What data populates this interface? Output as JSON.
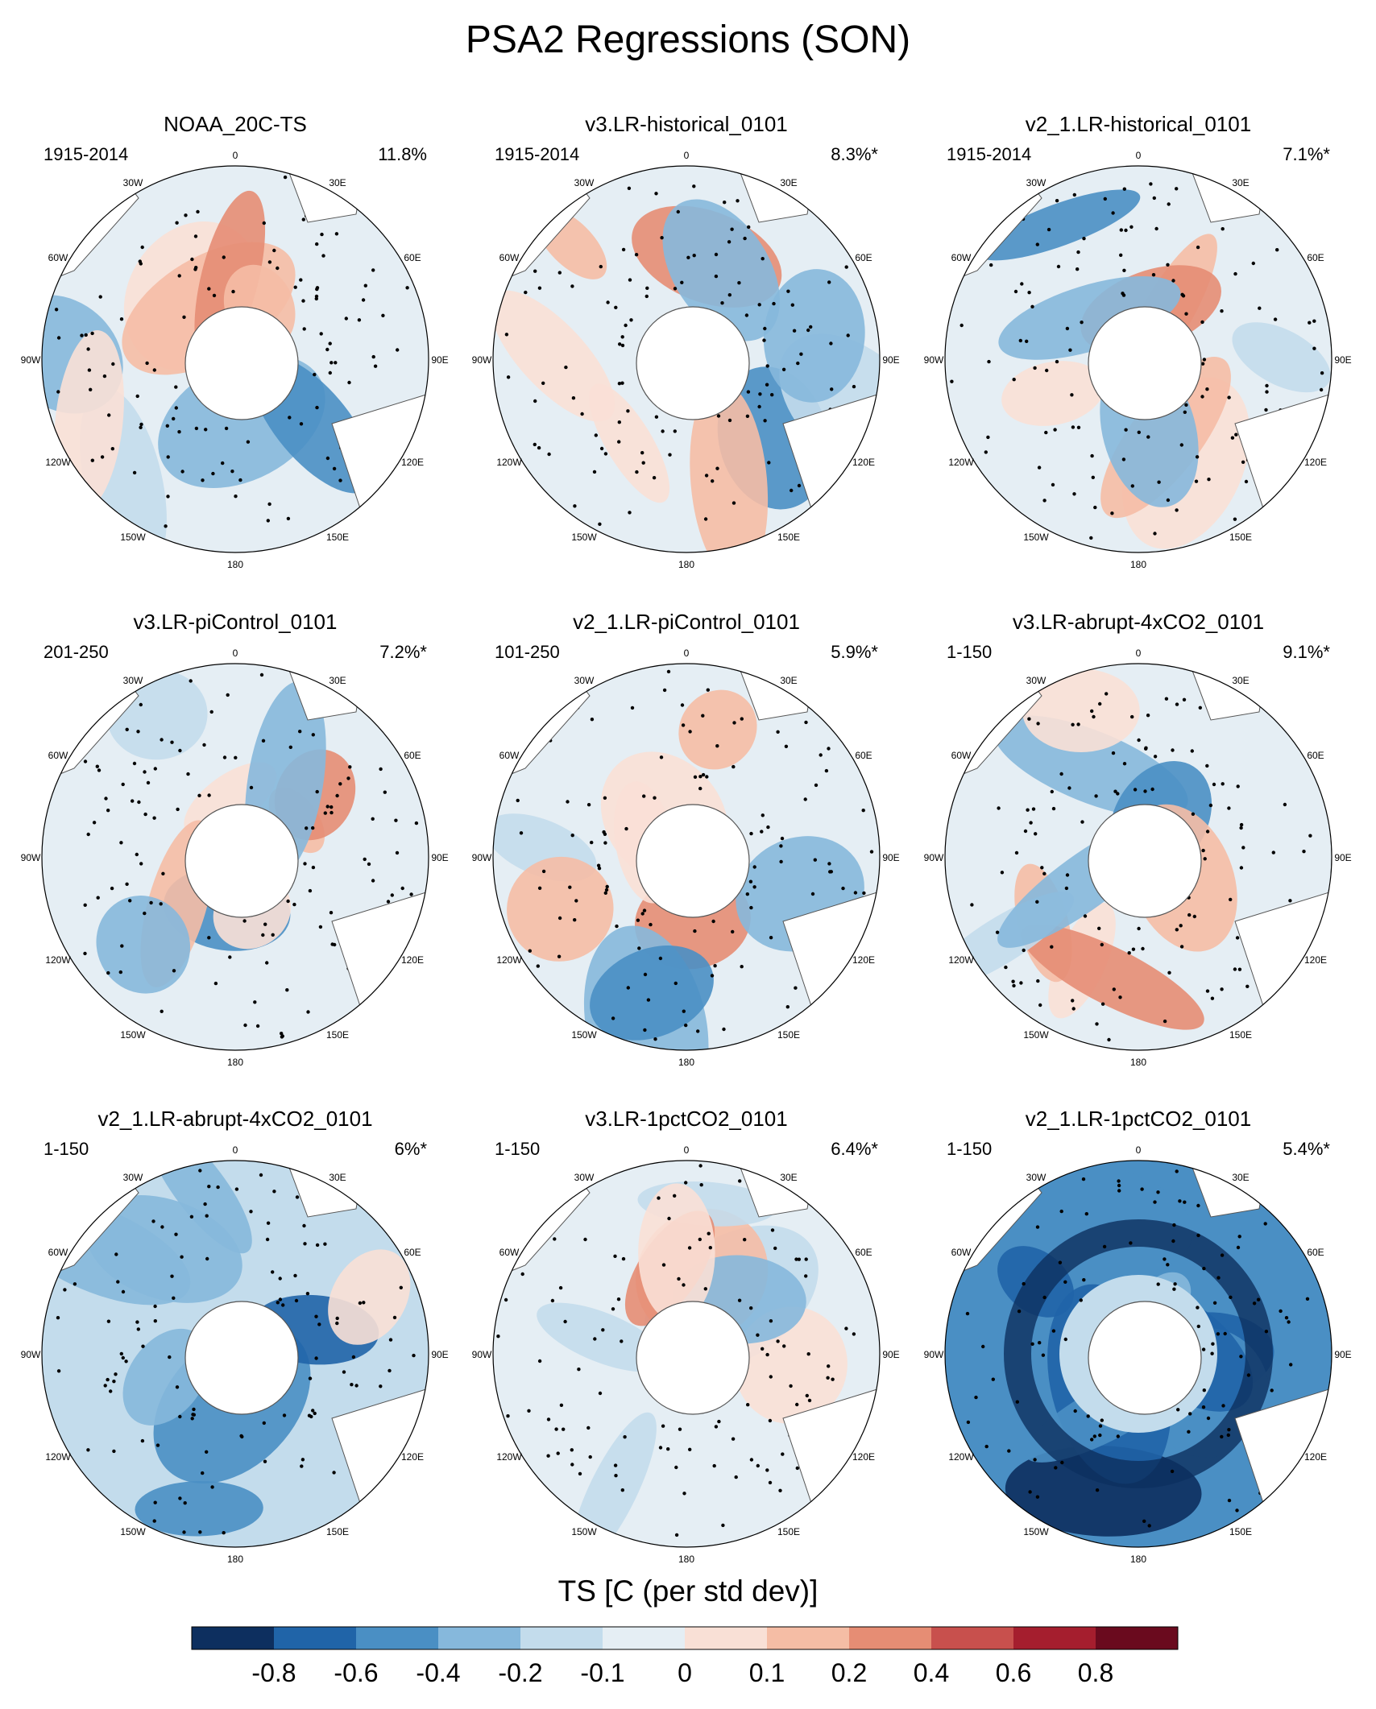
{
  "chart_data": {
    "type": "map-panels",
    "title": "PSA2 Regressions (SON)",
    "projection": "south-polar-stereographic",
    "lon_labels": [
      "0",
      "30E",
      "60E",
      "90E",
      "120E",
      "150E",
      "180",
      "150W",
      "120W",
      "90W",
      "60W",
      "30W"
    ],
    "panels": [
      {
        "name": "NOAA_20C-TS",
        "period": "1915-2014",
        "variance": "11.8%",
        "pattern": "mixed"
      },
      {
        "name": "v3.LR-historical_0101",
        "period": "1915-2014",
        "variance": "8.3%*",
        "pattern": "mixed"
      },
      {
        "name": "v2_1.LR-historical_0101",
        "period": "1915-2014",
        "variance": "7.1%*",
        "pattern": "mixed"
      },
      {
        "name": "v3.LR-piControl_0101",
        "period": "201-250",
        "variance": "7.2%*",
        "pattern": "mixed"
      },
      {
        "name": "v2_1.LR-piControl_0101",
        "period": "101-250",
        "variance": "5.9%*",
        "pattern": "mixed"
      },
      {
        "name": "v3.LR-abrupt-4xCO2_0101",
        "period": "1-150",
        "variance": "9.1%*",
        "pattern": "mixed"
      },
      {
        "name": "v2_1.LR-abrupt-4xCO2_0101",
        "period": "1-150",
        "variance": "6%*",
        "pattern": "cool"
      },
      {
        "name": "v3.LR-1pctCO2_0101",
        "period": "1-150",
        "variance": "6.4%*",
        "pattern": "light"
      },
      {
        "name": "v2_1.LR-1pctCO2_0101",
        "period": "1-150",
        "variance": "5.4%*",
        "pattern": "strong-cool"
      }
    ],
    "colorbar": {
      "title": "TS [C (per std dev)]",
      "labels": [
        "-0.8",
        "-0.6",
        "-0.4",
        "-0.2",
        "-0.1",
        "0",
        "0.1",
        "0.2",
        "0.4",
        "0.6",
        "0.8"
      ],
      "colors": [
        "#0d2f5f",
        "#2064a8",
        "#4a8fc4",
        "#86b8dc",
        "#c3dcec",
        "#e5eef4",
        "#f9e0d6",
        "#f5bda5",
        "#e68d74",
        "#c8504d",
        "#a51e2e",
        "#6a0a1e"
      ]
    }
  }
}
